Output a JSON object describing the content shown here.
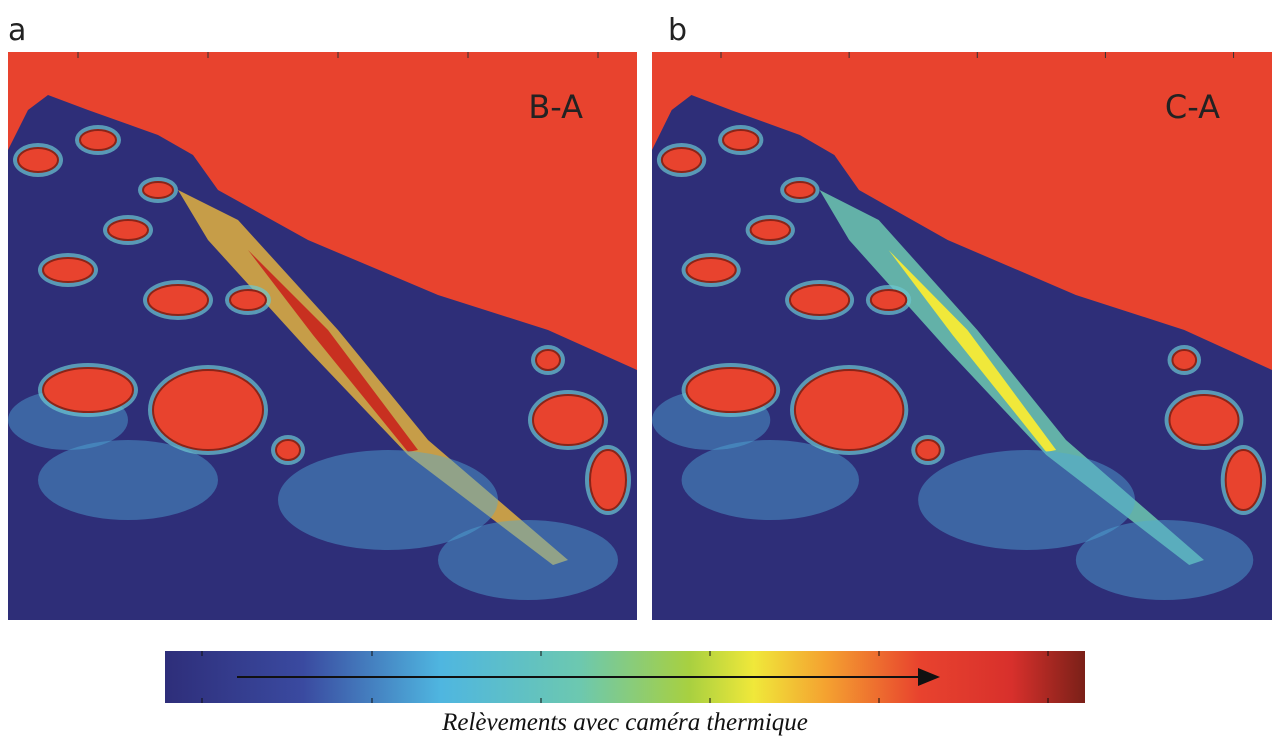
{
  "panels": [
    {
      "label": "a",
      "annotation": "B-A"
    },
    {
      "label": "b",
      "annotation": "C-A"
    }
  ],
  "caption": "Relèvements avec caméra thermique"
}
